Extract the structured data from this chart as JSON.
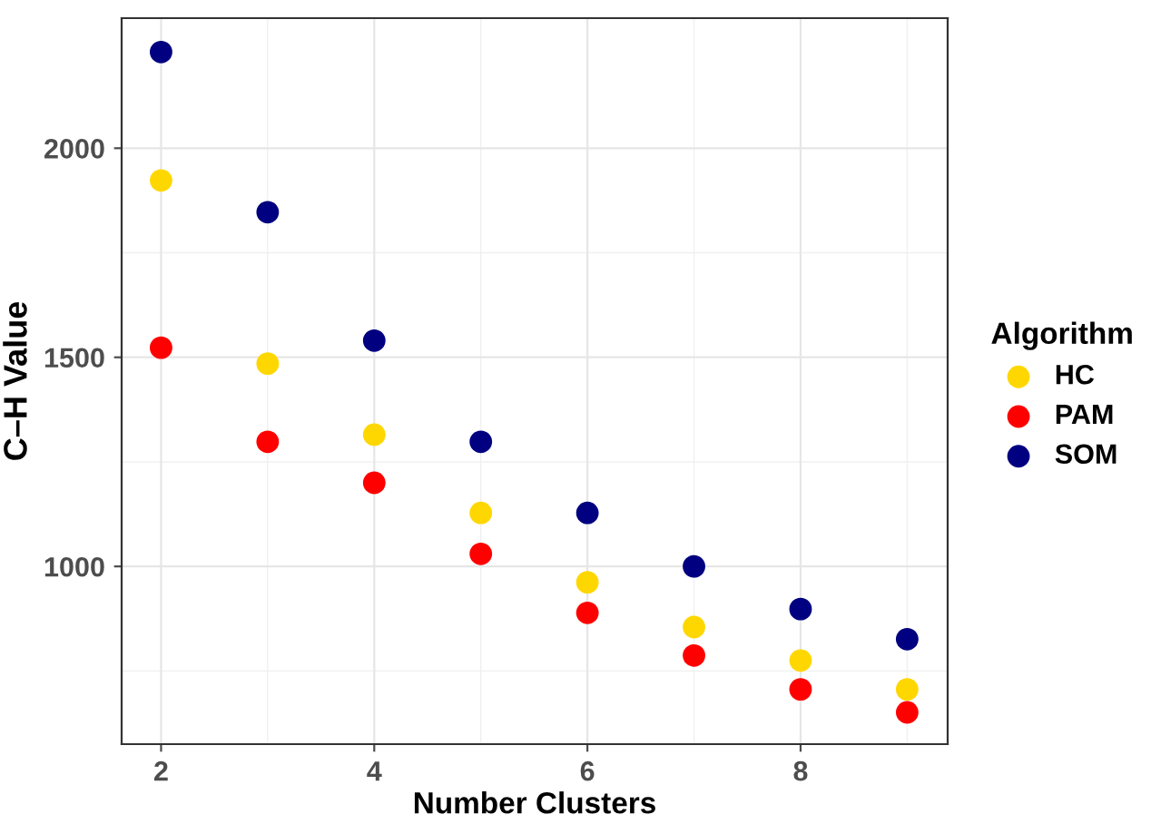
{
  "chart_data": {
    "type": "scatter",
    "xlabel": "Number Clusters",
    "ylabel": "C–H Value",
    "legend_title": "Algorithm",
    "x": [
      2,
      3,
      4,
      5,
      6,
      7,
      8,
      9
    ],
    "series": [
      {
        "name": "HC",
        "color": "#ffd700",
        "values": [
          1923,
          1485,
          1315,
          1128,
          962,
          855,
          775,
          706
        ]
      },
      {
        "name": "PAM",
        "color": "#ff0000",
        "values": [
          1523,
          1298,
          1200,
          1030,
          889,
          787,
          706,
          651
        ]
      },
      {
        "name": "SOM",
        "color": "#000080",
        "values": [
          2230,
          1847,
          1540,
          1298,
          1128,
          1000,
          898,
          826
        ]
      }
    ],
    "xlim": [
      1.63,
      9.38
    ],
    "ylim": [
      575,
      2311
    ],
    "xticks": [
      2,
      4,
      6,
      8
    ],
    "yticks": [
      1000,
      1500,
      2000
    ],
    "grid": true,
    "legend": "right",
    "marker": "circle"
  }
}
